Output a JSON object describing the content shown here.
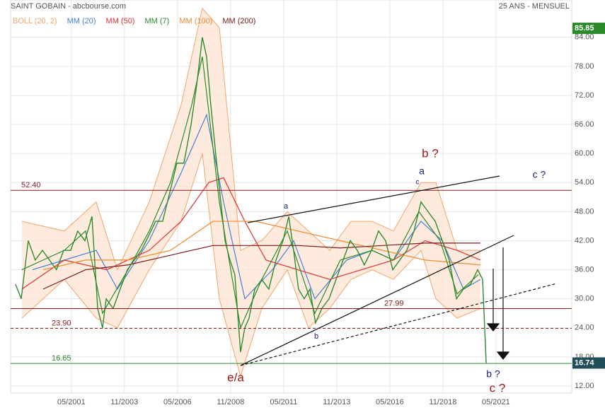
{
  "chart_data": {
    "type": "line",
    "title": "SAINT GOBAIN - abcbourse.com",
    "subtitle": "25 ANS - MENSUEL",
    "xlim": [
      1998.47,
      2024.9
    ],
    "ylim": [
      10.54,
      91.7
    ],
    "xticks": [
      {
        "value": 2001.33,
        "label": "05/2001"
      },
      {
        "value": 2003.83,
        "label": "11/2003"
      },
      {
        "value": 2006.33,
        "label": "05/2006"
      },
      {
        "value": 2008.83,
        "label": "11/2008"
      },
      {
        "value": 2011.33,
        "label": "05/2011"
      },
      {
        "value": 2013.83,
        "label": "11/2013"
      },
      {
        "value": 2016.33,
        "label": "05/2016"
      },
      {
        "value": 2018.83,
        "label": "11/2018"
      },
      {
        "value": 2021.33,
        "label": "05/2021"
      }
    ],
    "yticks": [
      {
        "value": 12,
        "label": "12.00"
      },
      {
        "value": 18,
        "label": "18.00"
      },
      {
        "value": 24,
        "label": "24.00"
      },
      {
        "value": 30,
        "label": "30.00"
      },
      {
        "value": 36,
        "label": "36.00"
      },
      {
        "value": 42,
        "label": "42.00"
      },
      {
        "value": 48,
        "label": "48.00"
      },
      {
        "value": 54,
        "label": "54.00"
      },
      {
        "value": 60,
        "label": "60.00"
      },
      {
        "value": 66,
        "label": "66.00"
      },
      {
        "value": 72,
        "label": "72.00"
      },
      {
        "value": 78,
        "label": "78.00"
      },
      {
        "value": 84,
        "label": "84.00"
      }
    ],
    "grid": true,
    "price": {
      "color": "#2e8b2e",
      "x": [
        1998.7,
        1998.97,
        1999.3,
        1999.63,
        1999.97,
        2000.3,
        2000.63,
        2000.97,
        2001.3,
        2001.63,
        2001.97,
        2002.3,
        2002.57,
        2002.8,
        2002.97,
        2003.3,
        2003.63,
        2003.97,
        2004.3,
        2004.63,
        2004.97,
        2005.3,
        2005.63,
        2005.97,
        2006.3,
        2006.63,
        2006.97,
        2007.23,
        2007.5,
        2007.7,
        2007.9,
        2008.13,
        2008.37,
        2008.57,
        2008.8,
        2009.03,
        2009.3,
        2009.5,
        2009.7,
        2009.97,
        2010.3,
        2010.63,
        2010.97,
        2011.3,
        2011.57,
        2011.8,
        2012.03,
        2012.3,
        2012.57,
        2012.83,
        2013.13,
        2013.47,
        2013.8,
        2014.13,
        2014.47,
        2014.8,
        2015.13,
        2015.47,
        2015.8,
        2016.13,
        2016.47,
        2016.8,
        2017.13,
        2017.47,
        2017.8,
        2018.13,
        2018.47,
        2018.8,
        2019.13,
        2019.47,
        2019.8,
        2020.13,
        2020.47,
        2020.7,
        2020.87
      ],
      "values": [
        33,
        30,
        42,
        38,
        40,
        38,
        36,
        40,
        40,
        44,
        42,
        47,
        28,
        24,
        30,
        28,
        32,
        36,
        38,
        40,
        43,
        46,
        46,
        52,
        58,
        58,
        66,
        74,
        84,
        80,
        70,
        60,
        50,
        42,
        38,
        35,
        19,
        24,
        26,
        32,
        34,
        32,
        38,
        42,
        47,
        40,
        32,
        30,
        32,
        25,
        28,
        30,
        34,
        38,
        42,
        40,
        37,
        40,
        44,
        42,
        36,
        38,
        40,
        44,
        50,
        48,
        46,
        42,
        38,
        30,
        32,
        33,
        36,
        34,
        16.74
      ]
    },
    "bollinger": {
      "name": "BOLL (20, 2)",
      "color": "#f4a46a",
      "x": [
        1999,
        2001,
        2002.5,
        2003.5,
        2005,
        2006.5,
        2007.5,
        2008.3,
        2009.3,
        2010.3,
        2011.5,
        2012.5,
        2013.5,
        2014.5,
        2015.5,
        2016.5,
        2017.8,
        2018.5,
        2019.5,
        2020.6
      ],
      "upper": [
        46,
        44,
        50,
        36,
        50,
        70,
        90,
        86,
        40,
        42,
        48,
        44,
        40,
        46,
        46,
        44,
        54,
        54,
        40,
        40
      ],
      "lower": [
        26,
        34,
        26,
        24,
        36,
        46,
        60,
        30,
        14,
        28,
        36,
        24,
        28,
        34,
        36,
        34,
        40,
        30,
        26,
        28
      ]
    },
    "series": [
      {
        "name": "MM (20)",
        "color": "#4a7fd8",
        "x": [
          1999.5,
          2001,
          2002.5,
          2003.5,
          2005,
          2006.5,
          2007.7,
          2008.5,
          2009.5,
          2010.8,
          2011.8,
          2012.8,
          2014.3,
          2015.5,
          2016.5,
          2017.8,
          2018.8,
          2019.8,
          2020.6
        ],
        "values": [
          36,
          38,
          40,
          32,
          42,
          56,
          68,
          50,
          30,
          36,
          42,
          30,
          38,
          40,
          38,
          46,
          42,
          32,
          34
        ]
      },
      {
        "name": "MM (50)",
        "color": "#e03030",
        "x": [
          1999,
          2001,
          2003,
          2005,
          2006.5,
          2007.8,
          2008.5,
          2009.5,
          2010.5,
          2012,
          2013.5,
          2015,
          2016.5,
          2018,
          2019.5,
          2020.6
        ],
        "values": [
          32,
          38,
          36,
          40,
          46,
          54,
          55,
          46,
          38,
          36,
          34,
          36,
          38,
          42,
          40,
          38
        ]
      },
      {
        "name": "MM (7)",
        "color": "#2a8a2a",
        "x": [
          1999,
          2000,
          2001,
          2002,
          2002.8,
          2004,
          2005,
          2006,
          2007,
          2007.5,
          2008.3,
          2009.3,
          2010.3,
          2011.5,
          2012.8,
          2014,
          2015.5,
          2016.5,
          2017.7,
          2018.7,
          2019.5,
          2020.5
        ],
        "values": [
          36,
          38,
          40,
          44,
          27,
          36,
          44,
          54,
          70,
          80,
          50,
          24,
          34,
          44,
          27,
          38,
          40,
          38,
          48,
          42,
          31,
          35
        ]
      },
      {
        "name": "MM (100)",
        "color": "#f08a30",
        "x": [
          2000,
          2002,
          2004,
          2006,
          2008,
          2010,
          2012,
          2014,
          2016,
          2018,
          2020.6
        ],
        "values": [
          36,
          38,
          38,
          40,
          46,
          46,
          44,
          42,
          40,
          38,
          37
        ]
      },
      {
        "name": "MM (200)",
        "color": "#7a1a1a",
        "x": [
          2000,
          2002,
          2004,
          2006,
          2008,
          2010,
          2012,
          2014,
          2016,
          2018,
          2020.6
        ],
        "values": [
          32,
          36,
          37,
          39,
          41,
          41,
          41,
          40.5,
          41,
          41.5,
          41.5
        ]
      }
    ],
    "levels": [
      {
        "value": 52.4,
        "label": "52.40",
        "color": "#8b1a1a"
      },
      {
        "value": 27.99,
        "label": "27.99",
        "color": "#8b1a1a"
      },
      {
        "value": 23.9,
        "label": "23.90",
        "color": "#8b1a1a"
      },
      {
        "value": 16.65,
        "label": "16.65",
        "color": "#2a8a2a"
      }
    ],
    "high_badge": {
      "value": 85.85,
      "label": "85.85"
    },
    "last_badge": {
      "value": 16.74,
      "label": "16.74"
    },
    "annotations": [
      {
        "text": "b ?",
        "color": "#a01818"
      },
      {
        "text": "a",
        "color": "#1a237e"
      },
      {
        "text": "c",
        "color": "#1a237e"
      },
      {
        "text": "c ?",
        "color": "#1a237e"
      },
      {
        "text": "a",
        "color": "#1a237e"
      },
      {
        "text": "b",
        "color": "#1a237e"
      },
      {
        "text": "e/a",
        "color": "#a01818"
      },
      {
        "text": "b ?",
        "color": "#1a237e"
      },
      {
        "text": "c ?",
        "color": "#a01818"
      }
    ]
  }
}
